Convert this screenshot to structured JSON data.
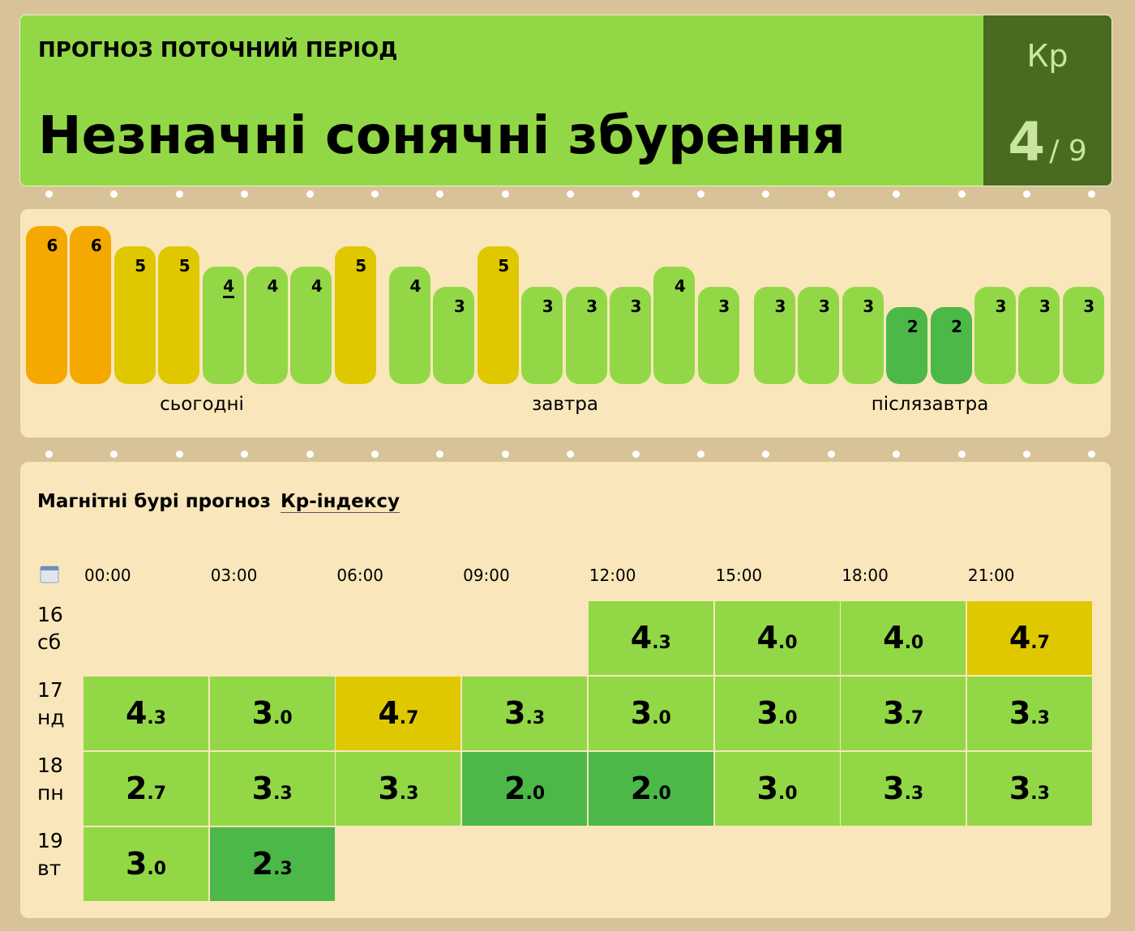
{
  "header": {
    "label": "ПРОГНОЗ ПОТОЧНИЙ ПЕРІОД",
    "title": "Незначні сонячні збурення",
    "kp_label": "Кр",
    "kp_value": 4,
    "kp_scale": "/ 9"
  },
  "bars": {
    "colors": {
      "2": "#4cb848",
      "3": "#92d846",
      "4": "#92d846",
      "5": "#dfc800",
      "6": "#f5a800"
    },
    "days": [
      {
        "label": "сьогодні",
        "values": [
          6,
          6,
          5,
          5,
          4,
          4,
          4,
          5
        ]
      },
      {
        "label": "завтра",
        "values": [
          4,
          3,
          5,
          3,
          3,
          3,
          4,
          3
        ]
      },
      {
        "label": "післязавтра",
        "values": [
          3,
          3,
          3,
          2,
          2,
          3,
          3,
          3
        ]
      }
    ]
  },
  "table": {
    "title": "Магнітні бурі прогноз",
    "link": "Кр-індексу",
    "times": [
      "00:00",
      "03:00",
      "06:00",
      "09:00",
      "12:00",
      "15:00",
      "18:00",
      "21:00"
    ],
    "rows": [
      {
        "day": "16",
        "weekday": "сб",
        "cells": [
          null,
          null,
          null,
          null,
          {
            "value": "4.3",
            "color": "#92d846"
          },
          {
            "value": "4.0",
            "color": "#92d846"
          },
          {
            "value": "4.0",
            "color": "#92d846"
          },
          {
            "value": "4.7",
            "color": "#dfc800"
          }
        ]
      },
      {
        "day": "17",
        "weekday": "нд",
        "cells": [
          {
            "value": "4.3",
            "color": "#92d846"
          },
          {
            "value": "3.0",
            "color": "#92d846"
          },
          {
            "value": "4.7",
            "color": "#dfc800"
          },
          {
            "value": "3.3",
            "color": "#92d846"
          },
          {
            "value": "3.0",
            "color": "#92d846"
          },
          {
            "value": "3.0",
            "color": "#92d846"
          },
          {
            "value": "3.7",
            "color": "#92d846"
          },
          {
            "value": "3.3",
            "color": "#92d846"
          }
        ]
      },
      {
        "day": "18",
        "weekday": "пн",
        "cells": [
          {
            "value": "2.7",
            "color": "#92d846"
          },
          {
            "value": "3.3",
            "color": "#92d846"
          },
          {
            "value": "3.3",
            "color": "#92d846"
          },
          {
            "value": "2.0",
            "color": "#4cb848"
          },
          {
            "value": "2.0",
            "color": "#4cb848"
          },
          {
            "value": "3.0",
            "color": "#92d846"
          },
          {
            "value": "3.3",
            "color": "#92d846"
          },
          {
            "value": "3.3",
            "color": "#92d846"
          }
        ]
      },
      {
        "day": "19",
        "weekday": "вт",
        "cells": [
          {
            "value": "3.0",
            "color": "#92d846"
          },
          {
            "value": "2.3",
            "color": "#4cb848"
          }
        ]
      }
    ]
  }
}
